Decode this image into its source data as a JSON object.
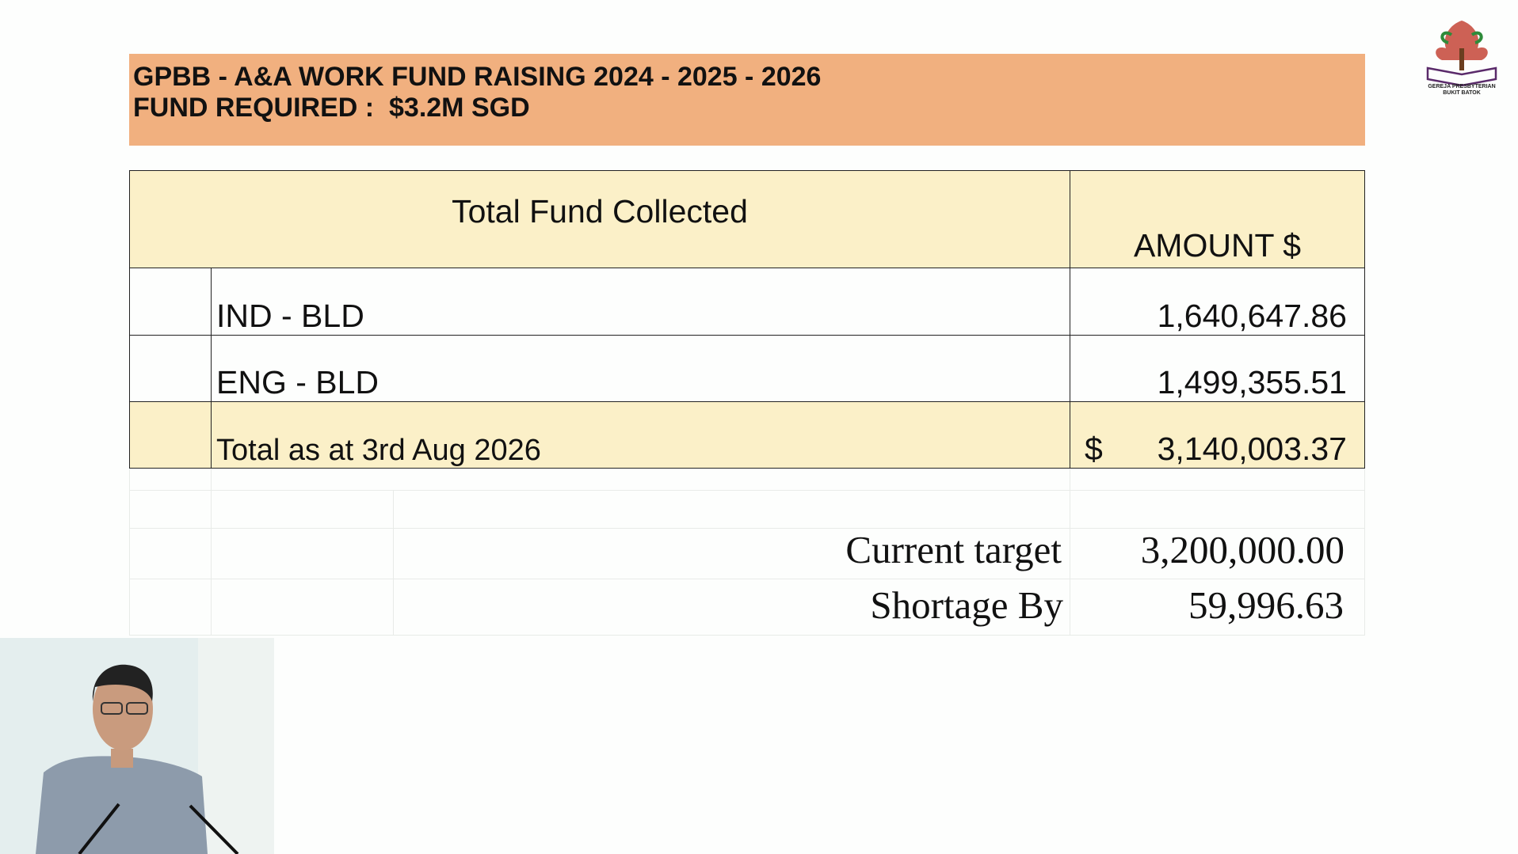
{
  "header": {
    "title": "GPBB - A&A WORK FUND RAISING 2024 - 2025 - 2026",
    "subtitle": "FUND REQUIRED :  $3.2M SGD"
  },
  "table": {
    "header": [
      "Total Fund Collected",
      "AMOUNT $"
    ],
    "rows": [
      [
        "IND - BLD",
        "1,640,647.86"
      ],
      [
        "ENG - BLD",
        "1,499,355.51"
      ]
    ],
    "total": {
      "label": "Total as at 3rd Aug 2026",
      "currency": "$",
      "amount": "3,140,003.37"
    }
  },
  "summary": [
    [
      "Current target",
      "3,200,000.00"
    ],
    [
      "Shortage By",
      "59,996.63"
    ]
  ],
  "logo": {
    "lines": [
      "GEREJA PRESBYTERIAN",
      "BUKIT BATOK"
    ]
  }
}
